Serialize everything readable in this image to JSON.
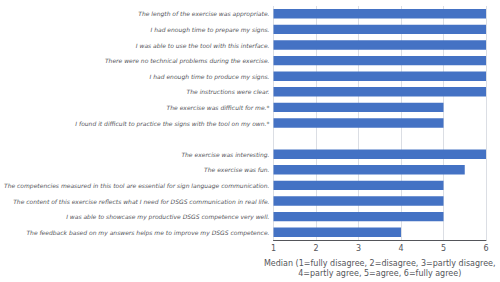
{
  "chart_data": {
    "type": "bar",
    "orientation": "horizontal",
    "categories": [
      "The length of the exercise was appropriate.",
      "I had enough time to prepare my signs.",
      "I was able to use the tool with this interface.",
      "There were no technical problems during the exercise.",
      "I had enough time to produce my signs.",
      "The instructions were clear.",
      "The exercise was difficult for me.*",
      "I found it difficult to practice the signs with the tool on my own.*",
      null,
      "The exercise was interesting.",
      "The exercise was fun.",
      "The competencies measured in this tool are essential for sign language communication.",
      "The content of this exercise reflects what I need for DSGS communication in real life.",
      "I was able to showcase my productive DSGS competence very well.",
      "The feedback based on my answers helps me to improve my DSGS competence."
    ],
    "values": [
      6,
      6,
      6,
      6,
      6,
      6,
      5,
      5,
      null,
      6,
      5.5,
      5,
      5,
      5,
      4
    ],
    "color": "#4472c4",
    "xlabel": "Median (1=fully disagree, 2=disagree, 3=partly disagree,\n4=partly agree, 5=agree, 6=fully agree)",
    "xlim": [
      1,
      6
    ],
    "xticks": [
      1,
      2,
      3,
      4,
      5,
      6
    ],
    "grid": true
  }
}
